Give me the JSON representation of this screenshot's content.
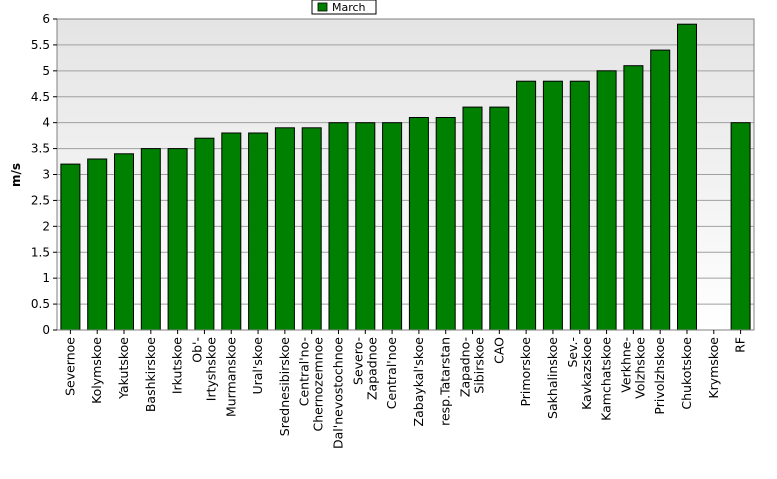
{
  "chart_data": {
    "type": "bar",
    "ylabel": "m/s",
    "xlabel": "",
    "ylim": [
      0,
      6
    ],
    "yticks": [
      "0",
      "0.5",
      "1",
      "1.5",
      "2",
      "2.5",
      "3",
      "3.5",
      "4",
      "4.5",
      "5",
      "5.5",
      "6"
    ],
    "grid": true,
    "legend_position": "top-center",
    "bar_color": "#008000",
    "plot_background_top": "#e4e4e4",
    "plot_background_bottom": "#ffffff",
    "series": [
      {
        "name": "March",
        "categories": [
          "Severnoe",
          "Kolymskoe",
          "Yakutskoe",
          "Bashkirskoe",
          "Irkutskoe",
          "Ob'-\nIrtyshskoe",
          "Murmanskoe",
          "Ural'skoe",
          "Srednesibirskoe",
          "Central'no-\nChernozemnoe",
          "Dal'nevostochnoe",
          "Severo-\nZapadnoe",
          "Central'noe",
          "Zabaykal'skoe",
          "resp.Tatarstan",
          "Zapadno-\nSibirskoe",
          "CAO",
          "Primorskoe",
          "Sakhalinskoe",
          "Sev.-\nKavkazskoe",
          "Kamchatskoe",
          "Verkhne-\nVolzhskoe",
          "Privolzhskoe",
          "Chukotskoe",
          "Krymskoe",
          "RF"
        ],
        "values": [
          3.2,
          3.3,
          3.4,
          3.5,
          3.5,
          3.7,
          3.8,
          3.8,
          3.9,
          3.9,
          4.0,
          4.0,
          4.0,
          4.1,
          4.1,
          4.3,
          4.3,
          4.8,
          4.8,
          4.8,
          5.0,
          5.1,
          5.4,
          5.9,
          null,
          4.0
        ]
      }
    ]
  }
}
